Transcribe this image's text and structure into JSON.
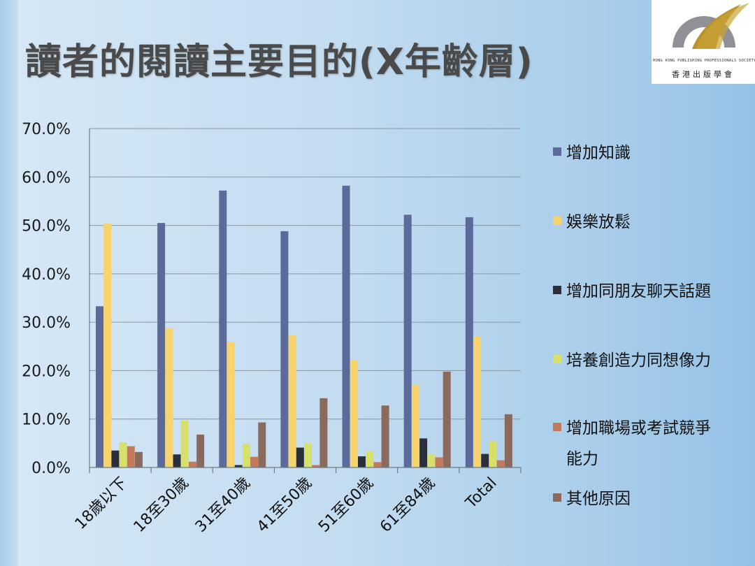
{
  "slide": {
    "title": "讀者的閱讀主要目的(X年齡層)",
    "logo": {
      "org_en": "HONG KONG PUBLISHING PROFESSIONALS SOCIETY",
      "org_zh": "香港出版學會"
    }
  },
  "chart_data": {
    "type": "bar",
    "categories": [
      "18歲以下",
      "18至30歲",
      "31至40歲",
      "41至50歲",
      "51至60歲",
      "61至84歲",
      "Total"
    ],
    "ylim": [
      0,
      70
    ],
    "yticks": [
      "0.0%",
      "10.0%",
      "20.0%",
      "30.0%",
      "40.0%",
      "50.0%",
      "60.0%",
      "70.0%"
    ],
    "grid": true,
    "legend_position": "right",
    "series": [
      {
        "name": "增加知識",
        "color": "#5b6a9a",
        "values": [
          33.3,
          50.5,
          57.2,
          48.8,
          58.2,
          52.2,
          51.7
        ]
      },
      {
        "name": "娛樂放鬆",
        "color": "#f7d36e",
        "values": [
          50.4,
          28.7,
          25.9,
          27.3,
          22.1,
          17.1,
          27.0
        ]
      },
      {
        "name": "增加同朋友聊天話題",
        "color": "#2b2f3a",
        "values": [
          3.5,
          2.7,
          0.5,
          4.1,
          2.3,
          6.0,
          2.8
        ]
      },
      {
        "name": "培養創造力同想像力",
        "color": "#d6e06a",
        "values": [
          5.2,
          9.7,
          4.9,
          5.0,
          3.3,
          2.7,
          5.5
        ]
      },
      {
        "name": "增加職場或考試競爭能力",
        "color": "#c27a5a",
        "values": [
          4.4,
          1.2,
          2.2,
          0.5,
          1.1,
          2.1,
          1.5
        ]
      },
      {
        "name": "其他原因",
        "color": "#8b6a5e",
        "values": [
          3.2,
          6.8,
          9.3,
          14.3,
          12.8,
          19.8,
          11.0
        ]
      }
    ],
    "legend_lines": [
      [
        "增加知識"
      ],
      [
        "娛樂放鬆"
      ],
      [
        "增加同朋友聊天話題"
      ],
      [
        "培養創造力同想像力"
      ],
      [
        "增加職場或考試競爭",
        "能力"
      ],
      [
        "其他原因"
      ]
    ]
  }
}
